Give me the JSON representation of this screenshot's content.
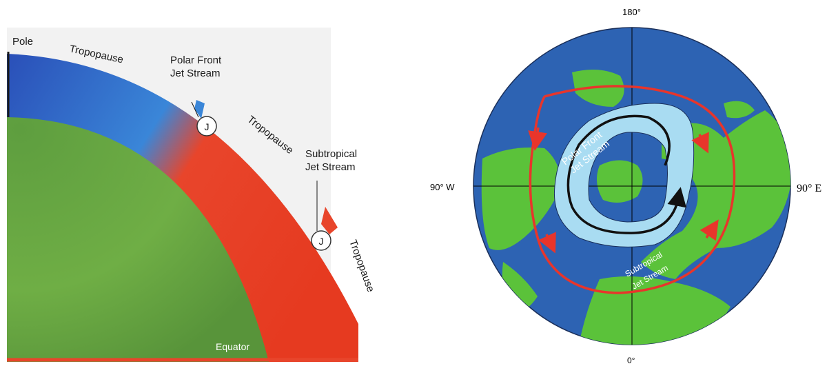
{
  "left_diagram": {
    "pole": "Pole",
    "equator": "Equator",
    "tropopause_top": "Tropopause",
    "tropopause_middle": "Tropopause",
    "tropopause_lower": "Tropopause",
    "polar_jet_line1": "Polar Front",
    "polar_jet_line2": "Jet Stream",
    "subtropical_jet_line1": "Subtropical",
    "subtropical_jet_line2": "Jet Stream",
    "jet_marker": "J"
  },
  "right_map": {
    "label_top": "180°",
    "label_bottom": "0°",
    "label_left": "90° W",
    "label_right": "90° E",
    "polar_jet_line1": "Polar Front",
    "polar_jet_line2": "Jet Stream",
    "subtropical_jet_line1": "Subtropical",
    "subtropical_jet_line2": "Jet Stream"
  },
  "colors": {
    "polar_air": "#2f5fc1",
    "tropical_air": "#e8452b",
    "earth": "#6fae45",
    "ocean": "#2d63b3",
    "land": "#5bc23a",
    "polar_jet_band": "#a9dcf2",
    "subtropical_jet": "#e8352b"
  }
}
